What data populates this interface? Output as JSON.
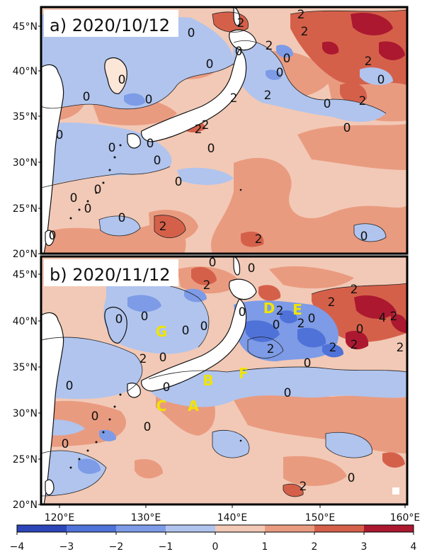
{
  "panels": [
    {
      "label": "a) 2020/10/12",
      "y_ticks": [
        "45°N",
        "40°N",
        "35°N",
        "30°N",
        "25°N",
        "20°N"
      ],
      "contour_labels": [
        "2",
        "2",
        "0",
        "2",
        "0",
        "2",
        "2",
        "0",
        "0",
        "0",
        "0",
        "0",
        "2",
        "2",
        "2",
        "2",
        "0",
        "0",
        "0",
        "0",
        "0",
        "2",
        "0",
        "0",
        "0",
        "0",
        "0",
        "0",
        "0",
        "2",
        "0",
        "2",
        "0",
        "0",
        "0"
      ]
    },
    {
      "label": "b) 2020/11/12",
      "y_ticks": [
        "45°N",
        "40°N",
        "35°N",
        "30°N",
        "25°N",
        "20°N"
      ],
      "contour_labels": [
        "0",
        "0",
        "2",
        "0",
        "2",
        "2",
        "0",
        "2",
        "0",
        "0",
        "2",
        "2",
        "2",
        "4",
        "2",
        "2",
        "0",
        "2",
        "0",
        "0",
        "0",
        "0",
        "0",
        "0",
        "2",
        "0",
        "0",
        "0",
        "0",
        "0",
        "2",
        "0"
      ],
      "site_markers": [
        "A",
        "B",
        "C",
        "D",
        "E",
        "F",
        "G"
      ]
    }
  ],
  "x_ticks": [
    "120°E",
    "130°E",
    "140°E",
    "150°E",
    "160°E"
  ],
  "colorbar": {
    "ticks": [
      "−4",
      "−3",
      "−2",
      "−1",
      "0",
      "1",
      "2",
      "3",
      "4"
    ],
    "colors": [
      "#2c45b8",
      "#4f72d9",
      "#7d9be6",
      "#b0c4ee",
      "#f2c9b6",
      "#e99b80",
      "#d5604a",
      "#ac1830"
    ],
    "min": -4,
    "max": 4
  },
  "colors": {
    "land": "#ffffff",
    "warm_light": "#f2c9b6",
    "warm_mid": "#e99b80",
    "warm_strong": "#d5604a",
    "warm_peak": "#ac1830",
    "cool_light": "#b0c4ee",
    "cool_mid": "#7d9be6",
    "cool_strong": "#4f72d9",
    "marker_text": "#f0e400"
  }
}
